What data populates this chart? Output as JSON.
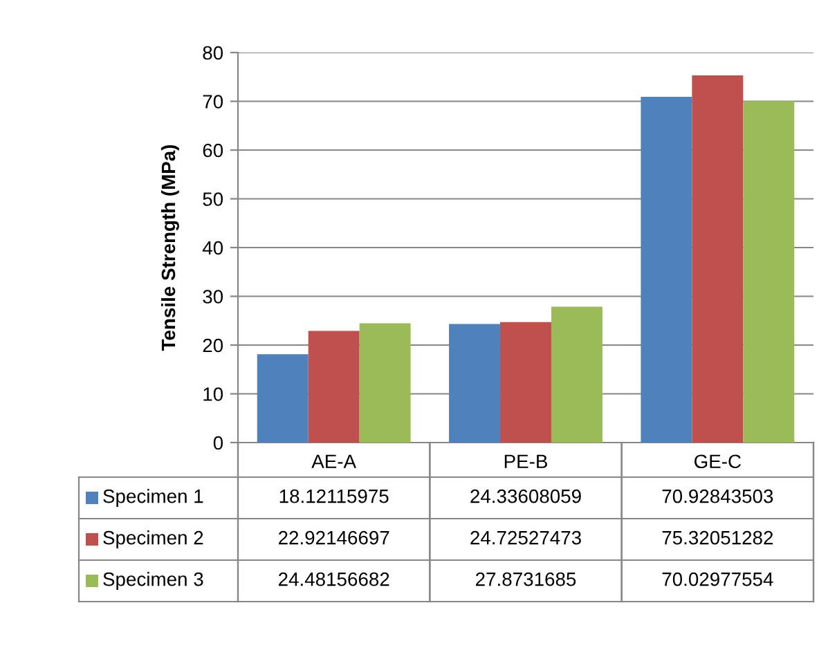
{
  "chart_data": {
    "type": "bar",
    "ylabel": "Tensile Strength (MPa)",
    "categories": [
      "AE-A",
      "PE-B",
      "GE-C"
    ],
    "series": [
      {
        "name": "Specimen 1",
        "color": "#4f81bd",
        "values": [
          18.12115975,
          24.33608059,
          70.92843503
        ]
      },
      {
        "name": "Specimen 2",
        "color": "#c0504d",
        "values": [
          22.92146697,
          24.72527473,
          75.32051282
        ]
      },
      {
        "name": "Specimen 3",
        "color": "#9bbb59",
        "values": [
          24.48156682,
          27.8731685,
          70.02977554
        ]
      }
    ],
    "ylim": [
      0,
      80
    ],
    "yticks": [
      0,
      10,
      20,
      30,
      40,
      50,
      60,
      70,
      80
    ],
    "grid": "y",
    "legend": "bottom left",
    "data_labels": true
  }
}
